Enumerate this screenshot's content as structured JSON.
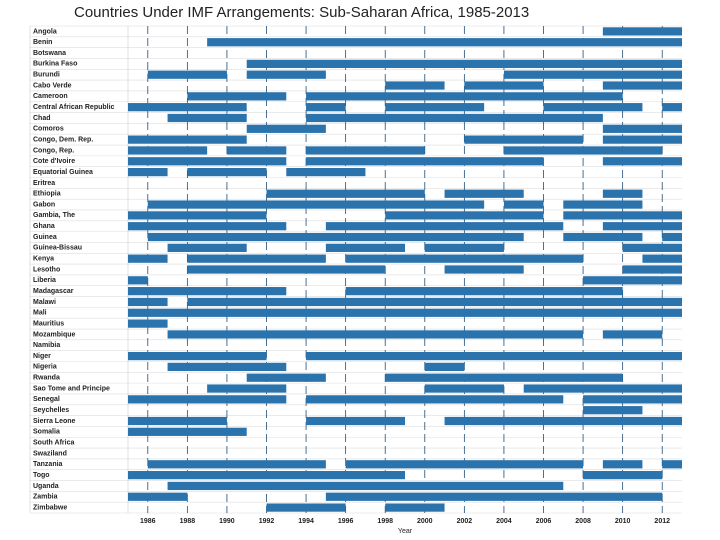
{
  "chart_data": {
    "type": "gantt",
    "title": "Countries Under IMF Arrangements: Sub-Saharan Africa, 1985-2013",
    "x_label": "Year",
    "color": "#2b73ad",
    "xlim": [
      1985,
      2013
    ],
    "xticks": [
      1986,
      1988,
      1990,
      1992,
      1994,
      1996,
      1998,
      2000,
      2002,
      2004,
      2006,
      2008,
      2010,
      2012
    ],
    "grid": true,
    "categories": [
      "Angola",
      "Benin",
      "Botswana",
      "Burkina Faso",
      "Burundi",
      "Cabo Verde",
      "Cameroon",
      "Central African Republic",
      "Chad",
      "Comoros",
      "Congo, Dem. Rep.",
      "Congo, Rep.",
      "Cote d'Ivoire",
      "Equatorial Guinea",
      "Eritrea",
      "Ethiopia",
      "Gabon",
      "Gambia, The",
      "Ghana",
      "Guinea",
      "Guinea-Bissau",
      "Kenya",
      "Lesotho",
      "Liberia",
      "Madagascar",
      "Malawi",
      "Mali",
      "Mauritius",
      "Mozambique",
      "Namibia",
      "Niger",
      "Nigeria",
      "Rwanda",
      "Sao Tome and Principe",
      "Senegal",
      "Seychelles",
      "Sierra Leone",
      "Somalia",
      "South Africa",
      "Swaziland",
      "Tanzania",
      "Togo",
      "Uganda",
      "Zambia",
      "Zimbabwe"
    ],
    "ranges": [
      [
        [
          2009,
          2013
        ]
      ],
      [
        [
          1989,
          2013
        ]
      ],
      [],
      [
        [
          1991,
          2013
        ]
      ],
      [
        [
          1986,
          1990
        ],
        [
          1991,
          1995
        ],
        [
          2004,
          2013
        ]
      ],
      [
        [
          1998,
          2001
        ],
        [
          2002,
          2006
        ],
        [
          2009,
          2013
        ]
      ],
      [
        [
          1988,
          1993
        ],
        [
          1994,
          2010
        ]
      ],
      [
        [
          1985,
          1991
        ],
        [
          1994,
          1996
        ],
        [
          1998,
          2003
        ],
        [
          2006,
          2011
        ],
        [
          2012,
          2013
        ]
      ],
      [
        [
          1987,
          1991
        ],
        [
          1994,
          2009
        ]
      ],
      [
        [
          1991,
          1995
        ],
        [
          2009,
          2013
        ]
      ],
      [
        [
          1985,
          1991
        ],
        [
          2002,
          2008
        ],
        [
          2009,
          2013
        ]
      ],
      [
        [
          1985,
          1989
        ],
        [
          1990,
          1993
        ],
        [
          1994,
          2000
        ],
        [
          2004,
          2012
        ]
      ],
      [
        [
          1985,
          1993
        ],
        [
          1994,
          2006
        ],
        [
          2009,
          2013
        ]
      ],
      [
        [
          1985,
          1987
        ],
        [
          1988,
          1992
        ],
        [
          1993,
          1997
        ]
      ],
      [],
      [
        [
          1992,
          2000
        ],
        [
          2001,
          2005
        ],
        [
          2009,
          2011
        ]
      ],
      [
        [
          1986,
          2003
        ],
        [
          2004,
          2006
        ],
        [
          2007,
          2011
        ]
      ],
      [
        [
          1985,
          1992
        ],
        [
          1998,
          2006
        ],
        [
          2007,
          2013
        ]
      ],
      [
        [
          1985,
          1993
        ],
        [
          1995,
          2007
        ],
        [
          2009,
          2013
        ]
      ],
      [
        [
          1986,
          2005
        ],
        [
          2007,
          2011
        ],
        [
          2012,
          2013
        ]
      ],
      [
        [
          1987,
          1991
        ],
        [
          1995,
          1999
        ],
        [
          2000,
          2004
        ],
        [
          2010,
          2013
        ]
      ],
      [
        [
          1985,
          1987
        ],
        [
          1988,
          1995
        ],
        [
          1996,
          2008
        ],
        [
          2011,
          2013
        ]
      ],
      [
        [
          1988,
          1998
        ],
        [
          2001,
          2005
        ],
        [
          2010,
          2013
        ]
      ],
      [
        [
          1985,
          1986
        ],
        [
          2008,
          2013
        ]
      ],
      [
        [
          1985,
          1993
        ],
        [
          1996,
          2010
        ]
      ],
      [
        [
          1985,
          1987
        ],
        [
          1988,
          2013
        ]
      ],
      [
        [
          1985,
          2013
        ]
      ],
      [
        [
          1985,
          1987
        ]
      ],
      [
        [
          1987,
          2008
        ],
        [
          2009,
          2012
        ]
      ],
      [],
      [
        [
          1985,
          1992
        ],
        [
          1994,
          2013
        ]
      ],
      [
        [
          1987,
          1993
        ],
        [
          2000,
          2002
        ]
      ],
      [
        [
          1991,
          1995
        ],
        [
          1998,
          2010
        ]
      ],
      [
        [
          1989,
          1993
        ],
        [
          2000,
          2004
        ],
        [
          2005,
          2013
        ]
      ],
      [
        [
          1985,
          1993
        ],
        [
          1994,
          2007
        ],
        [
          2008,
          2013
        ]
      ],
      [
        [
          2008,
          2011
        ]
      ],
      [
        [
          1985,
          1990
        ],
        [
          1994,
          1999
        ],
        [
          2001,
          2013
        ]
      ],
      [
        [
          1985,
          1991
        ]
      ],
      [],
      [],
      [
        [
          1986,
          1995
        ],
        [
          1996,
          2008
        ],
        [
          2009,
          2011
        ],
        [
          2012,
          2013
        ]
      ],
      [
        [
          1985,
          1999
        ],
        [
          2008,
          2012
        ]
      ],
      [
        [
          1987,
          2007
        ]
      ],
      [
        [
          1985,
          1988
        ],
        [
          1995,
          2012
        ]
      ],
      [
        [
          1992,
          1996
        ],
        [
          1998,
          2001
        ]
      ]
    ]
  }
}
